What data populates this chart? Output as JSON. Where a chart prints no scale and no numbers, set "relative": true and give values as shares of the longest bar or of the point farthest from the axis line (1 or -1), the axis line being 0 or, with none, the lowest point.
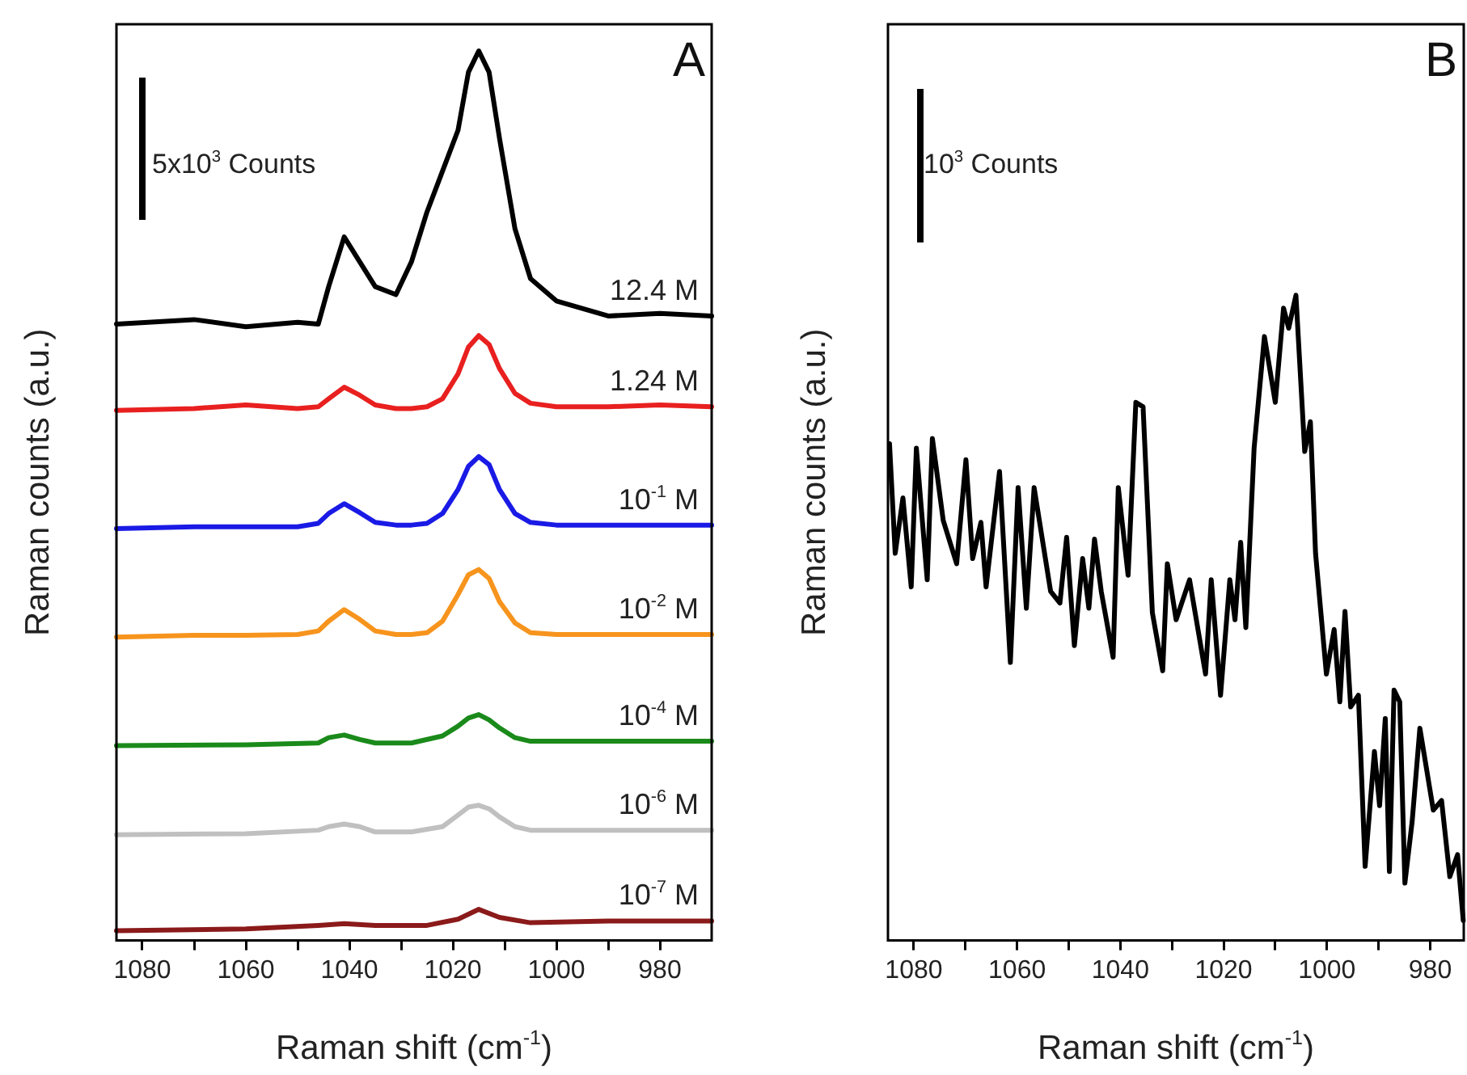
{
  "chart_data": [
    {
      "type": "line",
      "relative": true,
      "xlabel": "Raman shift (cm$^{-1}$)",
      "ylabel": "Raman counts (a.u.)",
      "annotations": [
        "A",
        "5x10$^{3}$ Counts"
      ],
      "xlim": [
        1085,
        970
      ],
      "xticks": [
        1080,
        {
          "value": 1070,
          "label": null
        },
        1060,
        {
          "value": 1050,
          "label": null
        },
        1040,
        {
          "value": 1030,
          "label": null
        },
        1020,
        {
          "value": 1010,
          "label": null
        },
        1000,
        {
          "value": 990,
          "label": null
        },
        980
      ],
      "series": [
        {
          "name": "12.4 M",
          "color": "#000000",
          "x": [
            1085,
            1070,
            1060,
            1050,
            1046,
            1044,
            1041,
            1038,
            1035,
            1031,
            1028,
            1025,
            1022,
            1019,
            1017,
            1015,
            1013,
            1011,
            1008,
            1005,
            1000,
            990,
            980,
            970
          ],
          "values": [
            0.693,
            0.698,
            0.69,
            0.695,
            0.693,
            0.735,
            0.791,
            0.763,
            0.735,
            0.726,
            0.763,
            0.819,
            0.865,
            0.911,
            0.976,
            1,
            0.976,
            0.902,
            0.8,
            0.744,
            0.719,
            0.702,
            0.705,
            0.702
          ]
        },
        {
          "name": "1.24 M",
          "color": "#e8201f",
          "x": [
            1085,
            1070,
            1060,
            1050,
            1046,
            1044,
            1041,
            1038,
            1035,
            1031,
            1028,
            1025,
            1022,
            1019,
            1017,
            1015,
            1013,
            1011,
            1008,
            1005,
            1000,
            990,
            980,
            970
          ],
          "values": [
            0.596,
            0.598,
            0.602,
            0.598,
            0.6,
            0.609,
            0.622,
            0.613,
            0.602,
            0.598,
            0.598,
            0.6,
            0.609,
            0.637,
            0.667,
            0.68,
            0.67,
            0.643,
            0.615,
            0.604,
            0.6,
            0.6,
            0.602,
            0.6
          ]
        },
        {
          "name": "10$^{-1}$ M",
          "color": "#1a1ae6",
          "x": [
            1085,
            1070,
            1060,
            1050,
            1046,
            1044,
            1041,
            1038,
            1035,
            1031,
            1028,
            1025,
            1022,
            1019,
            1017,
            1015,
            1013,
            1011,
            1008,
            1005,
            1000,
            990,
            980,
            970
          ],
          "values": [
            0.463,
            0.465,
            0.465,
            0.465,
            0.469,
            0.48,
            0.491,
            0.481,
            0.47,
            0.467,
            0.467,
            0.469,
            0.48,
            0.507,
            0.533,
            0.544,
            0.535,
            0.507,
            0.48,
            0.47,
            0.467,
            0.467,
            0.467,
            0.467
          ]
        },
        {
          "name": "10$^{-2}$ M",
          "color": "#f7941d",
          "x": [
            1085,
            1070,
            1060,
            1050,
            1046,
            1044,
            1041,
            1038,
            1035,
            1031,
            1028,
            1025,
            1022,
            1019,
            1017,
            1015,
            1013,
            1011,
            1008,
            1005,
            1000,
            990,
            980,
            970
          ],
          "values": [
            0.341,
            0.343,
            0.343,
            0.344,
            0.348,
            0.359,
            0.372,
            0.361,
            0.348,
            0.344,
            0.344,
            0.346,
            0.359,
            0.389,
            0.411,
            0.417,
            0.407,
            0.381,
            0.357,
            0.346,
            0.344,
            0.344,
            0.344,
            0.344
          ]
        },
        {
          "name": "10$^{-4}$ M",
          "color": "#1a8a1a",
          "x": [
            1085,
            1060,
            1046,
            1044,
            1041,
            1038,
            1035,
            1028,
            1022,
            1019,
            1017,
            1015,
            1013,
            1011,
            1008,
            1005,
            990,
            970
          ],
          "values": [
            0.219,
            0.22,
            0.222,
            0.228,
            0.231,
            0.226,
            0.222,
            0.222,
            0.23,
            0.241,
            0.25,
            0.254,
            0.248,
            0.239,
            0.228,
            0.224,
            0.224,
            0.224
          ]
        },
        {
          "name": "10$^{-6}$ M",
          "color": "#c0c0c0",
          "x": [
            1085,
            1060,
            1046,
            1044,
            1041,
            1038,
            1035,
            1028,
            1022,
            1019,
            1017,
            1015,
            1013,
            1011,
            1008,
            1005,
            970
          ],
          "values": [
            0.119,
            0.12,
            0.124,
            0.128,
            0.131,
            0.128,
            0.122,
            0.122,
            0.128,
            0.141,
            0.15,
            0.152,
            0.148,
            0.139,
            0.128,
            0.124,
            0.124
          ]
        },
        {
          "name": "10$^{-7}$ M",
          "color": "#8b1a1a",
          "x": [
            1085,
            1060,
            1046,
            1041,
            1035,
            1025,
            1019,
            1015,
            1011,
            1005,
            990,
            970
          ],
          "values": [
            0.011,
            0.013,
            0.017,
            0.019,
            0.017,
            0.017,
            0.024,
            0.035,
            0.026,
            0.02,
            0.022,
            0.022
          ]
        }
      ]
    },
    {
      "type": "line",
      "relative": true,
      "xlabel": "Raman shift (cm$^{-1}$)",
      "ylabel": "Raman counts (a.u.)",
      "annotations": [
        "B",
        "10$^{3}$ Counts"
      ],
      "xlim": [
        1085,
        973.5
      ],
      "xticks": [
        1080,
        {
          "value": 1070,
          "label": null
        },
        1060,
        {
          "value": 1050,
          "label": null
        },
        1040,
        {
          "value": 1030,
          "label": null
        },
        1020,
        {
          "value": 1010,
          "label": null
        },
        1000,
        {
          "value": 990,
          "label": null
        },
        980
      ],
      "series": [
        {
          "color": "#000000",
          "x": [
            1084.7,
            1083.6,
            1082.1,
            1080.5,
            1079.5,
            1077.4,
            1076.4,
            1074.3,
            1071.7,
            1069.9,
            1068.6,
            1067,
            1066,
            1063.4,
            1061.3,
            1059.8,
            1058.2,
            1056.7,
            1053.5,
            1051.7,
            1050.4,
            1048.9,
            1047.3,
            1046.1,
            1045,
            1043.7,
            1041.4,
            1040.4,
            1038.5,
            1037,
            1035.6,
            1033.8,
            1031.8,
            1030.9,
            1029.2,
            1026.6,
            1023.5,
            1022.4,
            1020.6,
            1018.8,
            1017.8,
            1016.7,
            1015.7,
            1014.1,
            1012.1,
            1010,
            1008.4,
            1007.4,
            1006,
            1004.3,
            1003.2,
            1002.2,
            1000.1,
            998.6,
            997.5,
            996.5,
            995.4,
            993.9,
            992.6,
            990.8,
            989.8,
            988.7,
            987.9,
            987,
            985.9,
            984.9,
            983.5,
            982,
            979.4,
            977.8,
            976.2,
            974.7,
            973.6
          ],
          "values": [
            0.77,
            0.6,
            0.686,
            0.548,
            0.763,
            0.559,
            0.778,
            0.651,
            0.584,
            0.745,
            0.592,
            0.648,
            0.548,
            0.727,
            0.431,
            0.702,
            0.515,
            0.702,
            0.541,
            0.523,
            0.625,
            0.457,
            0.592,
            0.515,
            0.622,
            0.541,
            0.439,
            0.702,
            0.566,
            0.834,
            0.827,
            0.508,
            0.418,
            0.584,
            0.497,
            0.559,
            0.413,
            0.559,
            0.38,
            0.559,
            0.497,
            0.617,
            0.485,
            0.763,
            0.936,
            0.834,
            0.98,
            0.949,
            1,
            0.758,
            0.804,
            0.6,
            0.413,
            0.482,
            0.37,
            0.51,
            0.362,
            0.38,
            0.115,
            0.293,
            0.209,
            0.344,
            0.107,
            0.388,
            0.37,
            0.089,
            0.184,
            0.329,
            0.202,
            0.217,
            0.099,
            0.133,
            0.031
          ]
        }
      ]
    }
  ]
}
